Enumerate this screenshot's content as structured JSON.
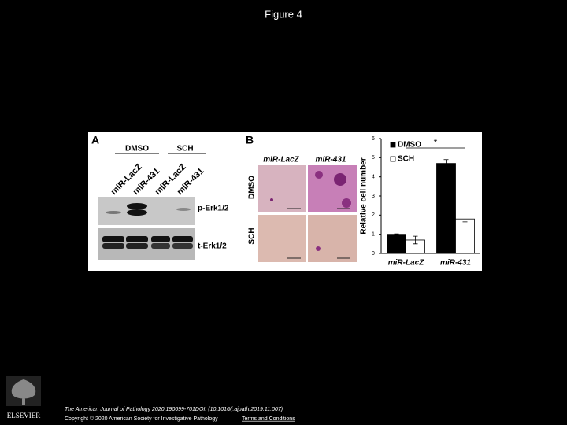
{
  "header": {
    "title": "Figure 4"
  },
  "figure": {
    "panel_a": {
      "letter": "A",
      "groups": [
        "DMSO",
        "SCH"
      ],
      "lanes": [
        "miR-LacZ",
        "miR-431",
        "miR-LacZ",
        "miR-431"
      ],
      "bands": [
        "p-Erk1/2",
        "t-Erk1/2"
      ]
    },
    "panel_b": {
      "letter": "B",
      "columns": [
        "miR-LacZ",
        "miR-431"
      ],
      "rows": [
        "DMSO",
        "SCH"
      ],
      "significance": "*"
    }
  },
  "chart_data": {
    "type": "bar",
    "y_label": "Relative cell number",
    "categories": [
      "miR-LacZ",
      "miR-431"
    ],
    "series": [
      {
        "name": "DMSO",
        "color": "#000000",
        "values": [
          1.0,
          4.7
        ],
        "errors": [
          0.02,
          0.2
        ]
      },
      {
        "name": "SCH",
        "color": "#ffffff",
        "values": [
          0.7,
          1.8
        ],
        "errors": [
          0.2,
          0.15
        ]
      }
    ],
    "ylim": [
      0,
      6
    ],
    "yticks": [
      0,
      1,
      2,
      3,
      4,
      5,
      6
    ],
    "legend": "top-left"
  },
  "footer": {
    "logo_text": "ELSEVIER",
    "citation": "The American Journal of Pathology 2020 190699-701DOI: (10.1016/j.ajpath.2019.11.007)",
    "copyright": "Copyright © 2020 American Society for Investigative Pathology",
    "link": "Terms and Conditions"
  }
}
